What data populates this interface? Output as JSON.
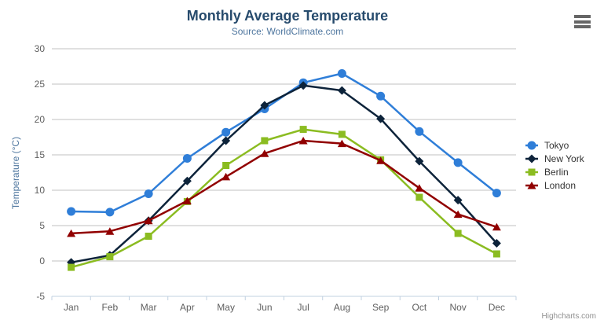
{
  "header": {
    "title": "Monthly Average Temperature",
    "subtitle": "Source: WorldClimate.com"
  },
  "credits": "Highcharts.com",
  "icons": {
    "menu": "hamburger-menu-icon"
  },
  "colors": {
    "title": "#274b6d",
    "subtitle": "#4d759e",
    "axis_title": "#4d759e",
    "axis_labels": "#606060",
    "gridline": "#c0c0c0",
    "axis_line": "#c0d0e0",
    "legend_text": "#333333",
    "credits_text": "#909090"
  },
  "chart_data": {
    "type": "line",
    "title": "Monthly Average Temperature",
    "subtitle": "Source: WorldClimate.com",
    "xlabel": "",
    "ylabel": "Temperature (°C)",
    "ylim": [
      -5,
      30
    ],
    "ytick_step": 5,
    "grid": true,
    "legend_position": "right",
    "categories": [
      "Jan",
      "Feb",
      "Mar",
      "Apr",
      "May",
      "Jun",
      "Jul",
      "Aug",
      "Sep",
      "Oct",
      "Nov",
      "Dec"
    ],
    "series": [
      {
        "name": "Tokyo",
        "color": "#2f7ed8",
        "marker": "circle",
        "values": [
          7.0,
          6.9,
          9.5,
          14.5,
          18.2,
          21.5,
          25.2,
          26.5,
          23.3,
          18.3,
          13.9,
          9.6
        ]
      },
      {
        "name": "New York",
        "color": "#0d233a",
        "marker": "diamond",
        "values": [
          -0.2,
          0.8,
          5.7,
          11.3,
          17.0,
          22.0,
          24.8,
          24.1,
          20.1,
          14.1,
          8.6,
          2.5
        ]
      },
      {
        "name": "Berlin",
        "color": "#8bbc21",
        "marker": "square",
        "values": [
          -0.9,
          0.6,
          3.5,
          8.4,
          13.5,
          17.0,
          18.6,
          17.9,
          14.3,
          9.0,
          3.9,
          1.0
        ]
      },
      {
        "name": "London",
        "color": "#910000",
        "marker": "triangle",
        "values": [
          3.9,
          4.2,
          5.7,
          8.5,
          11.9,
          15.2,
          17.0,
          16.6,
          14.2,
          10.3,
          6.6,
          4.8
        ]
      }
    ]
  }
}
